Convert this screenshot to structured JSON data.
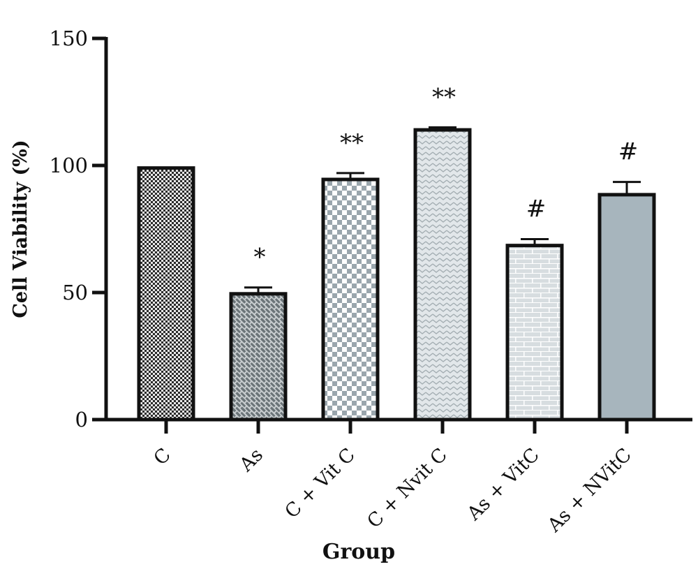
{
  "chart_data": {
    "type": "bar",
    "xlabel": "Group",
    "ylabel": "Cell Viability (%)",
    "ylim": [
      0,
      150
    ],
    "yticks": [
      0,
      50,
      100,
      150
    ],
    "categories": [
      "C",
      "As",
      "C + Vit C",
      "C + Nvit C",
      "As + VitC",
      "As + NVitC"
    ],
    "values": [
      99,
      49.5,
      94.5,
      114,
      68.5,
      88.5
    ],
    "errors": [
      0,
      2.5,
      2.5,
      1,
      2.5,
      5
    ],
    "annotations": [
      "",
      "*",
      "**",
      "**",
      "#",
      "#"
    ],
    "bar_fills": [
      "checker-dark",
      "diagonal-brick",
      "checker-light",
      "chevron-light",
      "brick",
      "solid-bluegray"
    ],
    "grid": false
  }
}
